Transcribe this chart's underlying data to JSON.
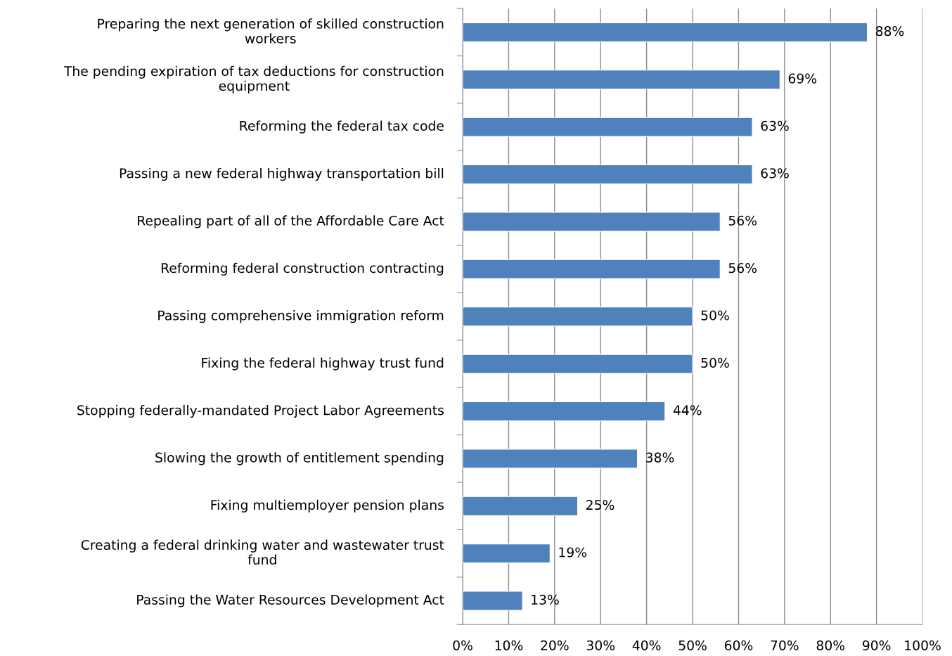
{
  "chart_data": {
    "type": "bar",
    "orientation": "horizontal",
    "categories": [
      "Preparing the next generation of skilled construction workers",
      "The pending expiration of tax deductions for construction equipment",
      "Reforming the federal tax code",
      "Passing a new federal highway transportation bill",
      "Repealing part of all of the Affordable Care Act",
      "Reforming federal construction contracting",
      "Passing comprehensive immigration reform",
      "Fixing the federal highway trust fund",
      "Stopping federally-mandated Project Labor Agreements",
      "Slowing the growth of entitlement spending",
      "Fixing multiemployer pension plans",
      "Creating a federal drinking water and wastewater trust fund",
      "Passing the Water Resources Development Act"
    ],
    "values": [
      88,
      69,
      63,
      63,
      56,
      56,
      50,
      50,
      44,
      38,
      25,
      19,
      13
    ],
    "value_labels": [
      "88%",
      "69%",
      "63%",
      "63%",
      "56%",
      "56%",
      "50%",
      "50%",
      "44%",
      "38%",
      "25%",
      "19%",
      "13%"
    ],
    "color": "#4f81bd",
    "xlim": [
      0,
      100
    ],
    "xticks": [
      {
        "value": 0,
        "label": "0%"
      },
      {
        "value": 10,
        "label": "10%"
      },
      {
        "value": 20,
        "label": "20%"
      },
      {
        "value": 30,
        "label": "30%"
      },
      {
        "value": 40,
        "label": "40%"
      },
      {
        "value": 50,
        "label": "50%"
      },
      {
        "value": 60,
        "label": "60%"
      },
      {
        "value": 70,
        "label": "70%"
      },
      {
        "value": 80,
        "label": "80%"
      },
      {
        "value": 90,
        "label": "90%"
      },
      {
        "value": 100,
        "label": "100%"
      }
    ],
    "grid": "x"
  }
}
